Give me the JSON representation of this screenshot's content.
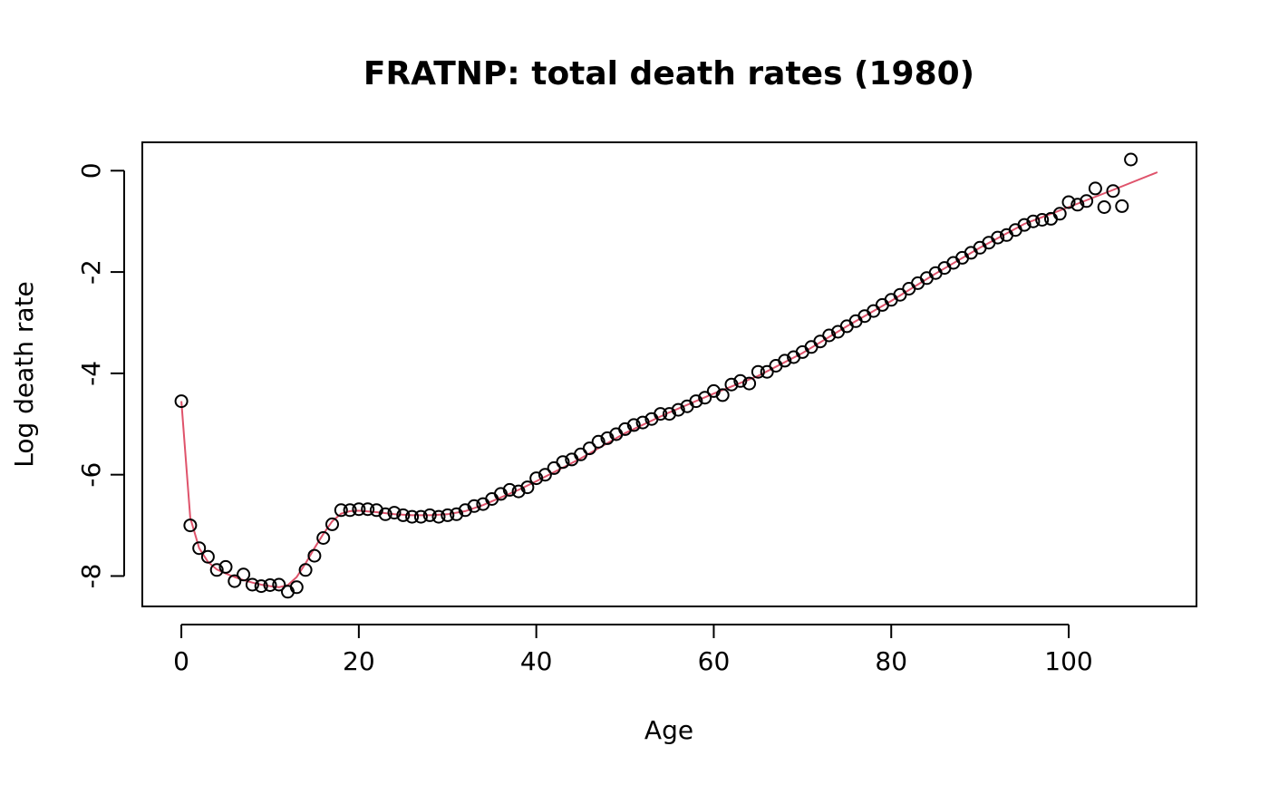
{
  "chart_data": {
    "type": "scatter",
    "title": "FRATNP: total death rates  (1980)",
    "xlabel": "Age",
    "ylabel": "Log death rate",
    "xlim": [
      -4.4,
      114.4
    ],
    "ylim": [
      -8.6,
      0.56
    ],
    "x_ticks": [
      0,
      20,
      40,
      60,
      80,
      100
    ],
    "y_ticks": [
      0,
      -2,
      -4,
      -6,
      -8
    ],
    "grid": false,
    "legend": "none",
    "colors": {
      "points": "#000000",
      "fit": "#DF536B"
    },
    "series": [
      {
        "type": "scatter",
        "marker": "open-circle",
        "x": [
          0,
          1,
          2,
          3,
          4,
          5,
          6,
          7,
          8,
          9,
          10,
          11,
          12,
          13,
          14,
          15,
          16,
          17,
          18,
          19,
          20,
          21,
          22,
          23,
          24,
          25,
          26,
          27,
          28,
          29,
          30,
          31,
          32,
          33,
          34,
          35,
          36,
          37,
          38,
          39,
          40,
          41,
          42,
          43,
          44,
          45,
          46,
          47,
          48,
          49,
          50,
          51,
          52,
          53,
          54,
          55,
          56,
          57,
          58,
          59,
          60,
          61,
          62,
          63,
          64,
          65,
          66,
          67,
          68,
          69,
          70,
          71,
          72,
          73,
          74,
          75,
          76,
          77,
          78,
          79,
          80,
          81,
          82,
          83,
          84,
          85,
          86,
          87,
          88,
          89,
          90,
          91,
          92,
          93,
          94,
          95,
          96,
          97,
          98,
          99,
          100,
          101,
          102,
          103,
          104,
          105,
          106,
          107
        ],
        "y": [
          -4.55,
          -7.0,
          -7.45,
          -7.62,
          -7.88,
          -7.82,
          -8.1,
          -7.97,
          -8.17,
          -8.2,
          -8.18,
          -8.17,
          -8.31,
          -8.22,
          -7.88,
          -7.6,
          -7.25,
          -6.98,
          -6.7,
          -6.7,
          -6.68,
          -6.68,
          -6.7,
          -6.78,
          -6.75,
          -6.8,
          -6.83,
          -6.83,
          -6.8,
          -6.83,
          -6.8,
          -6.78,
          -6.7,
          -6.62,
          -6.58,
          -6.48,
          -6.38,
          -6.3,
          -6.33,
          -6.25,
          -6.07,
          -6.0,
          -5.87,
          -5.75,
          -5.7,
          -5.6,
          -5.48,
          -5.35,
          -5.28,
          -5.2,
          -5.1,
          -5.02,
          -4.97,
          -4.9,
          -4.8,
          -4.8,
          -4.72,
          -4.65,
          -4.55,
          -4.48,
          -4.35,
          -4.43,
          -4.22,
          -4.15,
          -4.2,
          -3.97,
          -3.97,
          -3.85,
          -3.75,
          -3.68,
          -3.58,
          -3.48,
          -3.37,
          -3.25,
          -3.18,
          -3.07,
          -2.97,
          -2.87,
          -2.77,
          -2.65,
          -2.55,
          -2.45,
          -2.33,
          -2.22,
          -2.12,
          -2.02,
          -1.92,
          -1.82,
          -1.72,
          -1.62,
          -1.52,
          -1.42,
          -1.32,
          -1.27,
          -1.17,
          -1.07,
          -1.0,
          -0.97,
          -0.95,
          -0.85,
          -0.62,
          -0.67,
          -0.6,
          -0.35,
          -0.72,
          -0.4,
          -0.7,
          0.22
        ]
      },
      {
        "type": "line",
        "x": [
          0,
          1,
          2,
          3,
          4,
          5,
          6,
          7,
          8,
          9,
          10,
          11,
          12,
          13,
          14,
          15,
          16,
          17,
          18,
          19,
          20,
          22,
          24,
          26,
          28,
          30,
          32,
          34,
          36,
          38,
          40,
          45,
          50,
          55,
          60,
          65,
          70,
          75,
          80,
          85,
          90,
          95,
          100,
          105,
          110
        ],
        "y": [
          -4.55,
          -6.85,
          -7.45,
          -7.72,
          -7.87,
          -7.95,
          -8.02,
          -8.08,
          -8.13,
          -8.17,
          -8.2,
          -8.22,
          -8.18,
          -8.02,
          -7.75,
          -7.45,
          -7.17,
          -6.92,
          -6.77,
          -6.72,
          -6.71,
          -6.74,
          -6.78,
          -6.8,
          -6.8,
          -6.78,
          -6.72,
          -6.6,
          -6.45,
          -6.3,
          -6.13,
          -5.68,
          -5.18,
          -4.77,
          -4.4,
          -4.05,
          -3.6,
          -3.07,
          -2.57,
          -2.03,
          -1.52,
          -1.05,
          -0.72,
          -0.38,
          -0.03
        ]
      }
    ]
  }
}
